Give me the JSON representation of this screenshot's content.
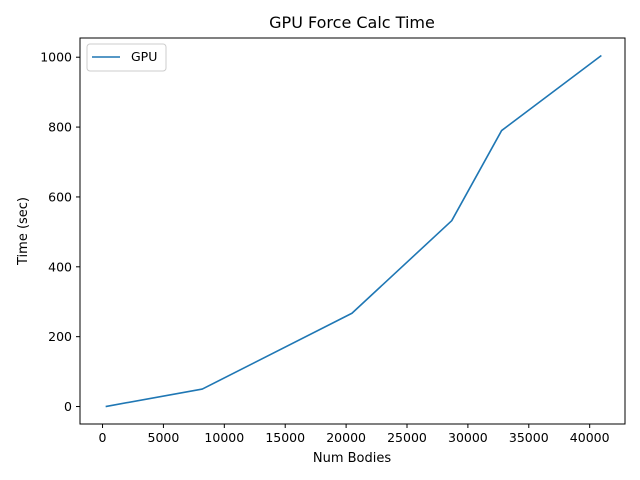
{
  "chart_data": {
    "type": "line",
    "title": "GPU Force Calc Time",
    "xlabel": "Num Bodies",
    "ylabel": "Time (sec)",
    "xlim": [
      -1850,
      42900
    ],
    "ylim": [
      -50,
      1055
    ],
    "xticks": [
      0,
      5000,
      10000,
      15000,
      20000,
      25000,
      30000,
      35000,
      40000
    ],
    "yticks": [
      0,
      200,
      400,
      600,
      800,
      1000
    ],
    "grid": false,
    "legend_position": "top-left",
    "series": [
      {
        "name": "GPU",
        "color": "#1f77b4",
        "x": [
          256,
          8192,
          20480,
          28672,
          32768,
          40960
        ],
        "y": [
          0,
          50,
          267,
          532,
          790,
          1005
        ]
      }
    ]
  }
}
